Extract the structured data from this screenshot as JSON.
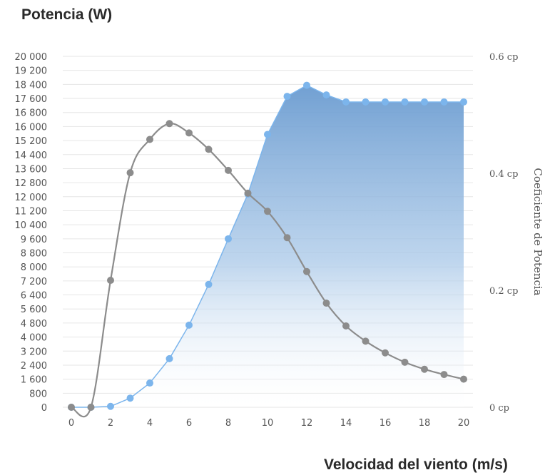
{
  "title": "Potencia (W)",
  "chart_data": {
    "type": "line",
    "title": "Potencia (W)",
    "xlabel": "Velocidad del viento (m/s)",
    "ylabel": "",
    "y2label": "Coeficiente de Potencia",
    "x": [
      0,
      1,
      2,
      3,
      4,
      5,
      6,
      7,
      8,
      9,
      10,
      11,
      12,
      13,
      14,
      15,
      16,
      17,
      18,
      19,
      20
    ],
    "xticks": [
      "0",
      "2",
      "4",
      "6",
      "8",
      "10",
      "12",
      "14",
      "16",
      "18",
      "20"
    ],
    "xlim": [
      0,
      20
    ],
    "ylim": [
      0,
      20000
    ],
    "yticks": [
      "0",
      "800",
      "1 600",
      "2 400",
      "3 200",
      "4 000",
      "4 800",
      "5 600",
      "6 400",
      "7 200",
      "8 000",
      "8 800",
      "9 600",
      "10 400",
      "11 200",
      "12 000",
      "12 800",
      "13 600",
      "14 400",
      "15 200",
      "16 000",
      "16 800",
      "17 600",
      "18 400",
      "19 200",
      "20 000"
    ],
    "y2lim": [
      0,
      0.6
    ],
    "y2ticks": [
      "0 cp",
      "0.2 cp",
      "0.4 cp",
      "0.6 cp"
    ],
    "grid": true,
    "series": [
      {
        "axis": "left",
        "style": "area",
        "color": "#7cb5ec",
        "values": [
          0,
          0,
          50,
          520,
          1380,
          2770,
          4680,
          7000,
          9600,
          12150,
          15550,
          17720,
          18350,
          17800,
          17400,
          17400,
          17400,
          17400,
          17400,
          17400,
          17400
        ]
      },
      {
        "axis": "right",
        "style": "spline",
        "color": "#8c8c8c",
        "values": [
          0,
          0,
          0.217,
          0.401,
          0.458,
          0.485,
          0.469,
          0.441,
          0.405,
          0.366,
          0.335,
          0.29,
          0.232,
          0.178,
          0.139,
          0.113,
          0.093,
          0.077,
          0.065,
          0.056,
          0.048
        ]
      }
    ]
  }
}
